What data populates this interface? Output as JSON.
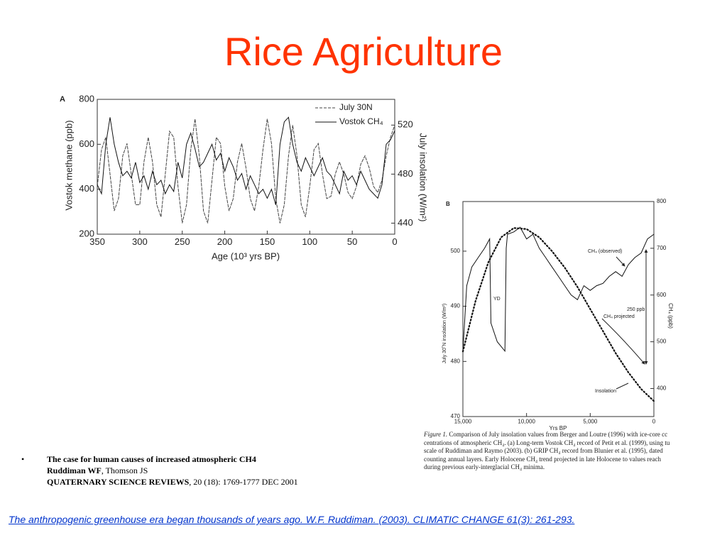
{
  "title": "Rice Agriculture",
  "chart_data": [
    {
      "type": "line",
      "panel": "A",
      "x_label": "Age (10³ yrs BP)",
      "y_label": "Vostok methane (ppb)",
      "y2_label": "July insolation (W/m²)",
      "xlim": [
        350,
        0
      ],
      "xticks": [
        350,
        300,
        250,
        200,
        150,
        100,
        50,
        0
      ],
      "ylim": [
        200,
        800
      ],
      "yticks": [
        200,
        400,
        600,
        800
      ],
      "y2lim": [
        431,
        541
      ],
      "y2ticks": [
        440,
        480,
        520
      ],
      "legend": "upper right",
      "x": [
        350,
        345,
        340,
        335,
        330,
        325,
        320,
        315,
        310,
        305,
        300,
        295,
        290,
        285,
        280,
        275,
        270,
        265,
        260,
        255,
        250,
        245,
        240,
        235,
        230,
        225,
        220,
        215,
        210,
        205,
        200,
        195,
        190,
        185,
        180,
        175,
        170,
        165,
        160,
        155,
        150,
        145,
        140,
        135,
        130,
        125,
        120,
        115,
        110,
        105,
        100,
        95,
        90,
        85,
        80,
        75,
        70,
        65,
        60,
        55,
        50,
        45,
        40,
        35,
        30,
        25,
        20,
        15,
        10,
        5,
        0
      ],
      "series": [
        {
          "name": "July 30N",
          "color": "#444444",
          "style": "dashed",
          "axis": "y2",
          "values": [
            470,
            500,
            510,
            480,
            450,
            460,
            495,
            505,
            480,
            455,
            455,
            490,
            510,
            490,
            455,
            445,
            480,
            515,
            510,
            470,
            440,
            455,
            500,
            525,
            495,
            450,
            440,
            475,
            510,
            505,
            470,
            450,
            460,
            490,
            505,
            485,
            460,
            450,
            470,
            500,
            525,
            505,
            460,
            440,
            455,
            495,
            520,
            495,
            455,
            445,
            470,
            500,
            505,
            480,
            460,
            462,
            480,
            490,
            480,
            465,
            460,
            470,
            488,
            495,
            485,
            470,
            465,
            475,
            495,
            510,
            520
          ]
        },
        {
          "name": "Vostok CH₄",
          "color": "#111111",
          "style": "solid",
          "values": [
            420,
            380,
            600,
            720,
            600,
            520,
            460,
            480,
            450,
            520,
            430,
            460,
            400,
            480,
            420,
            440,
            380,
            420,
            390,
            520,
            450,
            600,
            650,
            580,
            500,
            520,
            560,
            600,
            530,
            560,
            480,
            540,
            500,
            440,
            470,
            400,
            460,
            420,
            380,
            400,
            360,
            400,
            330,
            600,
            700,
            720,
            600,
            520,
            480,
            540,
            500,
            460,
            500,
            540,
            480,
            460,
            420,
            380,
            480,
            440,
            460,
            420,
            480,
            440,
            400,
            380,
            360,
            420,
            600,
            620,
            660
          ]
        }
      ]
    },
    {
      "type": "line",
      "panel": "B",
      "x_label": "Yrs BP",
      "y_label": "July 30˚N insolation (W/m²)",
      "y2_label": "CH₄ (ppb)",
      "xlim": [
        15000,
        0
      ],
      "xticks": [
        {
          "value": 15000,
          "label": "15,000"
        },
        {
          "value": 10000,
          "label": "10,000"
        },
        {
          "value": 5000,
          "label": "5,000"
        },
        0
      ],
      "ylim": [
        470,
        509
      ],
      "yticks": [
        470,
        480,
        490,
        500
      ],
      "y2lim": [
        340,
        800
      ],
      "y2ticks": [
        400,
        500,
        600,
        700,
        800
      ],
      "annotations": [
        "YD",
        "250 ppb",
        "CH₄ projected"
      ],
      "series": [
        {
          "name": "Insolation",
          "color": "#111111",
          "style": "dotted",
          "x": [
            15000,
            14000,
            13000,
            12000,
            11000,
            10000,
            9000,
            8000,
            7000,
            6000,
            5000,
            4000,
            3000,
            2000,
            1000,
            0
          ],
          "values": [
            481.8,
            491,
            498,
            502.5,
            504.2,
            504,
            502.5,
            500,
            497,
            493.5,
            489.5,
            485.5,
            481.5,
            478,
            475,
            472.8
          ]
        },
        {
          "name": "CH₄ (observed)",
          "color": "#111111",
          "style": "solid",
          "axis": "y2",
          "x": [
            15000,
            14700,
            14300,
            13800,
            13300,
            12900,
            12800,
            12300,
            11700,
            11600,
            11500,
            11000,
            10500,
            10000,
            9500,
            9000,
            8500,
            8000,
            7500,
            7000,
            6500,
            6000,
            5500,
            5000,
            4500,
            4000,
            3500,
            3000,
            2500,
            2000,
            1500,
            1000,
            500,
            0
          ],
          "values": [
            480,
            620,
            660,
            680,
            700,
            720,
            540,
            500,
            480,
            700,
            730,
            735,
            745,
            720,
            730,
            700,
            680,
            660,
            640,
            620,
            600,
            590,
            620,
            610,
            620,
            625,
            640,
            650,
            640,
            665,
            680,
            690,
            720,
            730
          ]
        }
      ]
    }
  ],
  "caption": {
    "label": "Figure 1.",
    "lines": [
      " Comparison of July insolation values from Berger and Loutre (1996) with ice-core cc",
      "centrations of atmospheric CH₄. (a) Long-term Vostok CH₄ record of Petit et al. (1999), using tu",
      "scale of Ruddiman and Raymo (2003). (b) GRIP CH₄ record from Blunier et al. (1995), dated",
      "counting annual layers. Early Holocene CH₄ trend projected in late Holocene to values reach",
      "during previous early-interglacial CH₄ minima."
    ]
  },
  "bullet": {
    "mark": "•",
    "title": "The case for human causes of increased atmospheric CH4",
    "authors_bold": "Ruddiman WF",
    "authors_rest": ", Thomson JS",
    "journal": "QUATERNARY SCIENCE REVIEWS",
    "citation": ", 20 (18): 1769-1777 DEC 2001"
  },
  "footer": {
    "text": "The anthropogenic greenhouse era began thousands of years ago. W.F. Ruddiman. (2003). CLIMATIC CHANGE 61(3): 261-293",
    "period": "."
  }
}
